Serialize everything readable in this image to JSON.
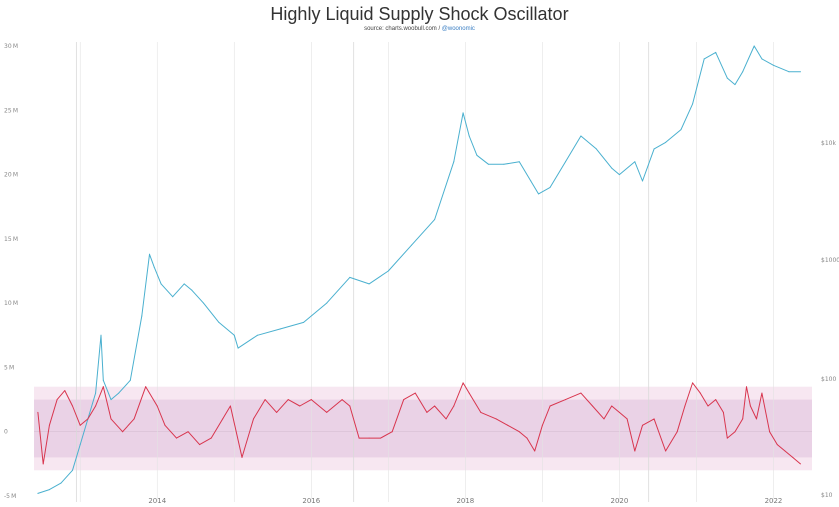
{
  "chart_data": {
    "type": "line",
    "title": "Highly Liquid Supply Shock Oscillator",
    "source_prefix": "source: charts.woobull.com / ",
    "source_handle": "@woonomic",
    "x_ticks": [
      "2014",
      "2016",
      "2018",
      "2020",
      "2022"
    ],
    "left_axis": {
      "ylim": [
        -5,
        30
      ],
      "ticks": [
        "30 M",
        "25 M",
        "20 M",
        "15 M",
        "10 M",
        "5 M",
        "0",
        "-5 M"
      ]
    },
    "right_axis": {
      "scale": "log",
      "ticks": [
        "$10k",
        "$1000",
        "$100",
        "$10"
      ]
    },
    "xlim": [
      2012.4,
      2022.5
    ],
    "bands": {
      "outer": [
        -3,
        3.5
      ],
      "inner": [
        -2,
        2.5
      ],
      "outer_color": "#f7e7f1",
      "inner_color": "#ead2e6"
    },
    "grid": "vertical-lines",
    "colors": {
      "price": "#4ab0cf",
      "oscillator": "#d8354e",
      "gridline": "#e3e3e3"
    },
    "series": [
      {
        "color": "#4ab0cf",
        "x": [
          2012.45,
          2012.6,
          2012.75,
          2012.9,
          2013.0,
          2013.1,
          2013.2,
          2013.27,
          2013.3,
          2013.4,
          2013.5,
          2013.65,
          2013.8,
          2013.9,
          2013.96,
          2014.05,
          2014.2,
          2014.35,
          2014.45,
          2014.6,
          2014.8,
          2015.0,
          2015.05,
          2015.3,
          2015.6,
          2015.9,
          2016.2,
          2016.5,
          2016.75,
          2017.0,
          2017.3,
          2017.6,
          2017.85,
          2017.97,
          2018.05,
          2018.15,
          2018.3,
          2018.5,
          2018.7,
          2018.85,
          2018.95,
          2019.1,
          2019.3,
          2019.5,
          2019.7,
          2019.9,
          2020.0,
          2020.2,
          2020.3,
          2020.45,
          2020.6,
          2020.8,
          2020.95,
          2021.1,
          2021.25,
          2021.4,
          2021.5,
          2021.6,
          2021.75,
          2021.85,
          2022.0,
          2022.2,
          2022.35
        ],
        "y": [
          -4.8,
          -4.5,
          -4.0,
          -3.0,
          -1.0,
          1.0,
          3.0,
          7.5,
          4.0,
          2.5,
          3.0,
          4.0,
          9.0,
          13.8,
          12.8,
          11.5,
          10.5,
          11.5,
          11.0,
          10.0,
          8.5,
          7.5,
          6.5,
          7.5,
          8.0,
          8.5,
          10.0,
          12.0,
          11.5,
          12.5,
          14.5,
          16.5,
          21.0,
          24.8,
          23.0,
          21.5,
          20.8,
          20.8,
          21.0,
          19.5,
          18.5,
          19.0,
          21.0,
          23.0,
          22.0,
          20.5,
          20.0,
          21.0,
          19.5,
          22.0,
          22.5,
          23.5,
          25.5,
          29.0,
          29.5,
          27.5,
          27.0,
          28.0,
          30.0,
          29.0,
          28.5,
          28.0,
          28.0
        ]
      },
      {
        "color": "#d8354e",
        "x": [
          2012.45,
          2012.52,
          2012.6,
          2012.7,
          2012.8,
          2012.9,
          2013.0,
          2013.1,
          2013.2,
          2013.3,
          2013.4,
          2013.55,
          2013.7,
          2013.85,
          2014.0,
          2014.1,
          2014.25,
          2014.4,
          2014.55,
          2014.7,
          2014.85,
          2014.95,
          2015.1,
          2015.25,
          2015.4,
          2015.55,
          2015.7,
          2015.85,
          2016.0,
          2016.2,
          2016.4,
          2016.5,
          2016.62,
          2016.75,
          2016.9,
          2017.05,
          2017.2,
          2017.35,
          2017.5,
          2017.6,
          2017.75,
          2017.85,
          2017.97,
          2018.05,
          2018.2,
          2018.4,
          2018.55,
          2018.7,
          2018.8,
          2018.9,
          2019.0,
          2019.1,
          2019.3,
          2019.5,
          2019.65,
          2019.8,
          2019.9,
          2020.0,
          2020.1,
          2020.2,
          2020.3,
          2020.45,
          2020.6,
          2020.75,
          2020.85,
          2020.95,
          2021.05,
          2021.15,
          2021.25,
          2021.35,
          2021.4,
          2021.5,
          2021.6,
          2021.65,
          2021.7,
          2021.78,
          2021.85,
          2021.95,
          2022.05,
          2022.15,
          2022.25,
          2022.35
        ],
        "y": [
          1.5,
          -2.5,
          0.5,
          2.5,
          3.2,
          2.0,
          0.5,
          1.0,
          2.0,
          3.5,
          1.0,
          0.0,
          1.0,
          3.5,
          2.0,
          0.5,
          -0.5,
          0.0,
          -1.0,
          -0.5,
          1.0,
          2.0,
          -2.0,
          1.0,
          2.5,
          1.5,
          2.5,
          2.0,
          2.5,
          1.5,
          2.5,
          2.0,
          -0.5,
          -0.5,
          -0.5,
          0.0,
          2.5,
          3.0,
          1.5,
          2.0,
          1.0,
          2.0,
          3.8,
          3.0,
          1.5,
          1.0,
          0.5,
          0.0,
          -0.5,
          -1.5,
          0.5,
          2.0,
          2.5,
          3.0,
          2.0,
          1.0,
          2.0,
          1.5,
          1.0,
          -1.5,
          0.5,
          1.0,
          -1.5,
          0.0,
          2.0,
          3.8,
          3.0,
          2.0,
          2.5,
          1.5,
          -0.5,
          0.0,
          1.0,
          3.5,
          2.0,
          1.0,
          3.0,
          0.0,
          -1.0,
          -1.5,
          -2.0,
          -2.5
        ]
      }
    ]
  }
}
